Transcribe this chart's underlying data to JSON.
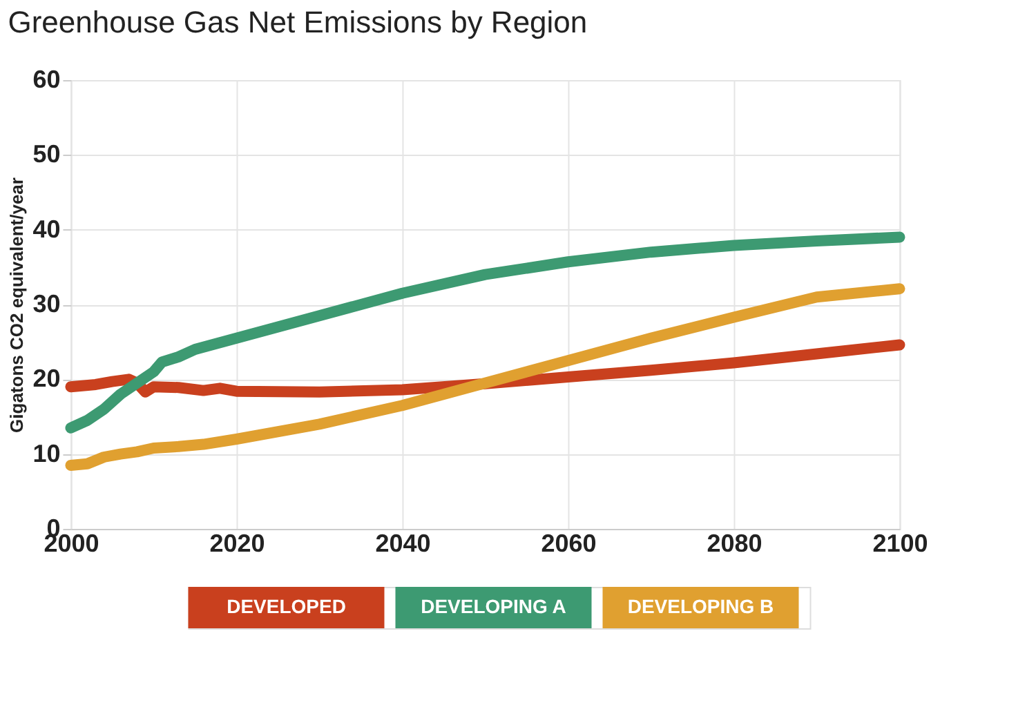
{
  "chart_data": {
    "type": "line",
    "title": "Greenhouse Gas Net Emissions by Region",
    "ylabel": "Gigatons CO2 equivalent/year",
    "xlim": [
      2000,
      2100
    ],
    "xticks": [
      2000,
      2020,
      2040,
      2060,
      2080,
      2100
    ],
    "ylim": [
      0,
      60
    ],
    "yticks": [
      0,
      10,
      20,
      30,
      40,
      50,
      60
    ],
    "grid": true,
    "legend": "bottom",
    "marker": "none",
    "line_style": "solid",
    "series": [
      {
        "name": "DEVELOPED",
        "color": "#c9401e",
        "x": [
          2000,
          2003,
          2005,
          2007,
          2008,
          2009,
          2010,
          2013,
          2016,
          2018,
          2020,
          2030,
          2040,
          2050,
          2060,
          2070,
          2080,
          2090,
          2100
        ],
        "values": [
          19,
          19.3,
          19.7,
          20,
          19.5,
          18.3,
          19,
          18.9,
          18.5,
          18.8,
          18.4,
          18.3,
          18.6,
          19.4,
          20.3,
          21.2,
          22.2,
          23.4,
          24.6
        ]
      },
      {
        "name": "DEVELOPING A",
        "color": "#3d9a72",
        "x": [
          2000,
          2002,
          2004,
          2006,
          2008,
          2010,
          2011,
          2013,
          2015,
          2020,
          2030,
          2040,
          2050,
          2060,
          2070,
          2080,
          2090,
          2100
        ],
        "values": [
          13.5,
          14.5,
          16,
          18,
          19.5,
          21,
          22.3,
          23,
          24,
          25.5,
          28.5,
          31.5,
          34,
          35.7,
          37,
          37.9,
          38.5,
          39
        ]
      },
      {
        "name": "DEVELOPING B",
        "color": "#e0a030",
        "x": [
          2000,
          2002,
          2004,
          2006,
          2008,
          2010,
          2013,
          2016,
          2020,
          2030,
          2040,
          2050,
          2060,
          2070,
          2080,
          2090,
          2100
        ],
        "values": [
          8.5,
          8.7,
          9.6,
          10,
          10.3,
          10.8,
          11,
          11.3,
          12,
          14,
          16.5,
          19.5,
          22.5,
          25.5,
          28.3,
          31,
          32.1
        ]
      }
    ]
  }
}
